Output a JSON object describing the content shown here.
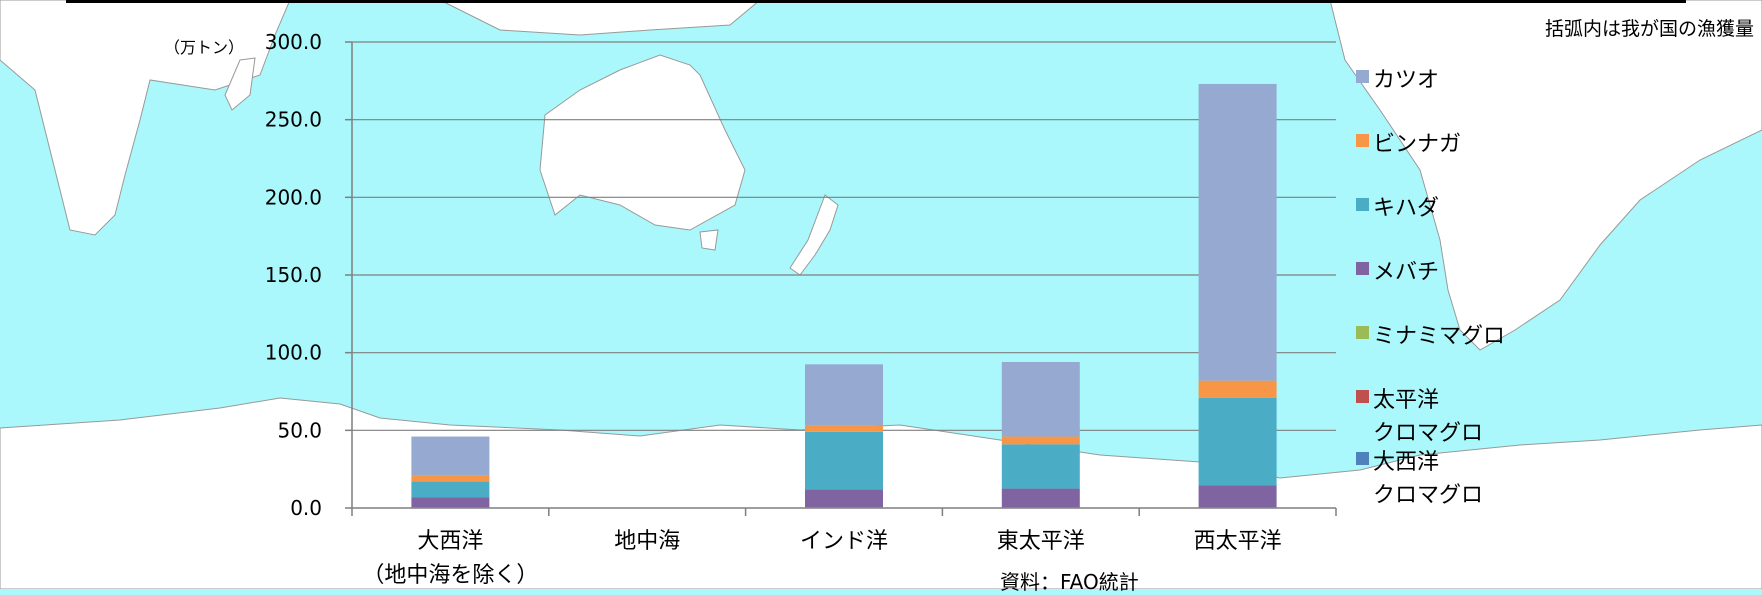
{
  "note": "括弧内は我が国の漁獲量",
  "unit": "（万トン）",
  "source": "資料：FAO統計",
  "chart_data": {
    "type": "bar",
    "stacked": true,
    "categories": [
      "大西洋\n（地中海を除く）",
      "地中海",
      "インド洋",
      "東太平洋",
      "西太平洋"
    ],
    "ylim": [
      0,
      300
    ],
    "yticks": [
      "0.0",
      "50.0",
      "100.0",
      "150.0",
      "200.0",
      "250.0",
      "300.0"
    ],
    "grid": true,
    "legend_position": "right",
    "series": [
      {
        "name": "大西洋クロマグロ",
        "color": "#4f81bd",
        "values": [
          0.5,
          0.3,
          0,
          0,
          0
        ]
      },
      {
        "name": "太平洋クロマグロ",
        "color": "#c0504d",
        "values": [
          0,
          0,
          0,
          0.5,
          0.5
        ]
      },
      {
        "name": "ミナミマグロ",
        "color": "#9bbb59",
        "values": [
          0,
          0,
          0.5,
          0,
          0
        ]
      },
      {
        "name": "メバチ",
        "color": "#8064a2",
        "values": [
          6.5,
          0,
          11.5,
          12,
          14
        ]
      },
      {
        "name": "キハダ",
        "color": "#4bacc6",
        "values": [
          10,
          0,
          37,
          28.5,
          56.5
        ]
      },
      {
        "name": "ビンナガ",
        "color": "#f79646",
        "values": [
          4,
          0,
          4,
          5,
          11
        ]
      },
      {
        "name": "カツオ",
        "color": "#95a9d1",
        "values": [
          25,
          0,
          39.5,
          48,
          191
        ]
      }
    ],
    "legend": [
      {
        "series": 6,
        "label": "カツオ"
      },
      {
        "series": 5,
        "label": "ビンナガ"
      },
      {
        "series": 4,
        "label": "キハダ"
      },
      {
        "series": 3,
        "label": "メバチ"
      },
      {
        "series": 2,
        "label": "ミナミマグロ"
      },
      {
        "series": 1,
        "label": "太平洋\nクロマグロ"
      },
      {
        "series": 0,
        "label": "大西洋\nクロマグロ"
      }
    ]
  }
}
